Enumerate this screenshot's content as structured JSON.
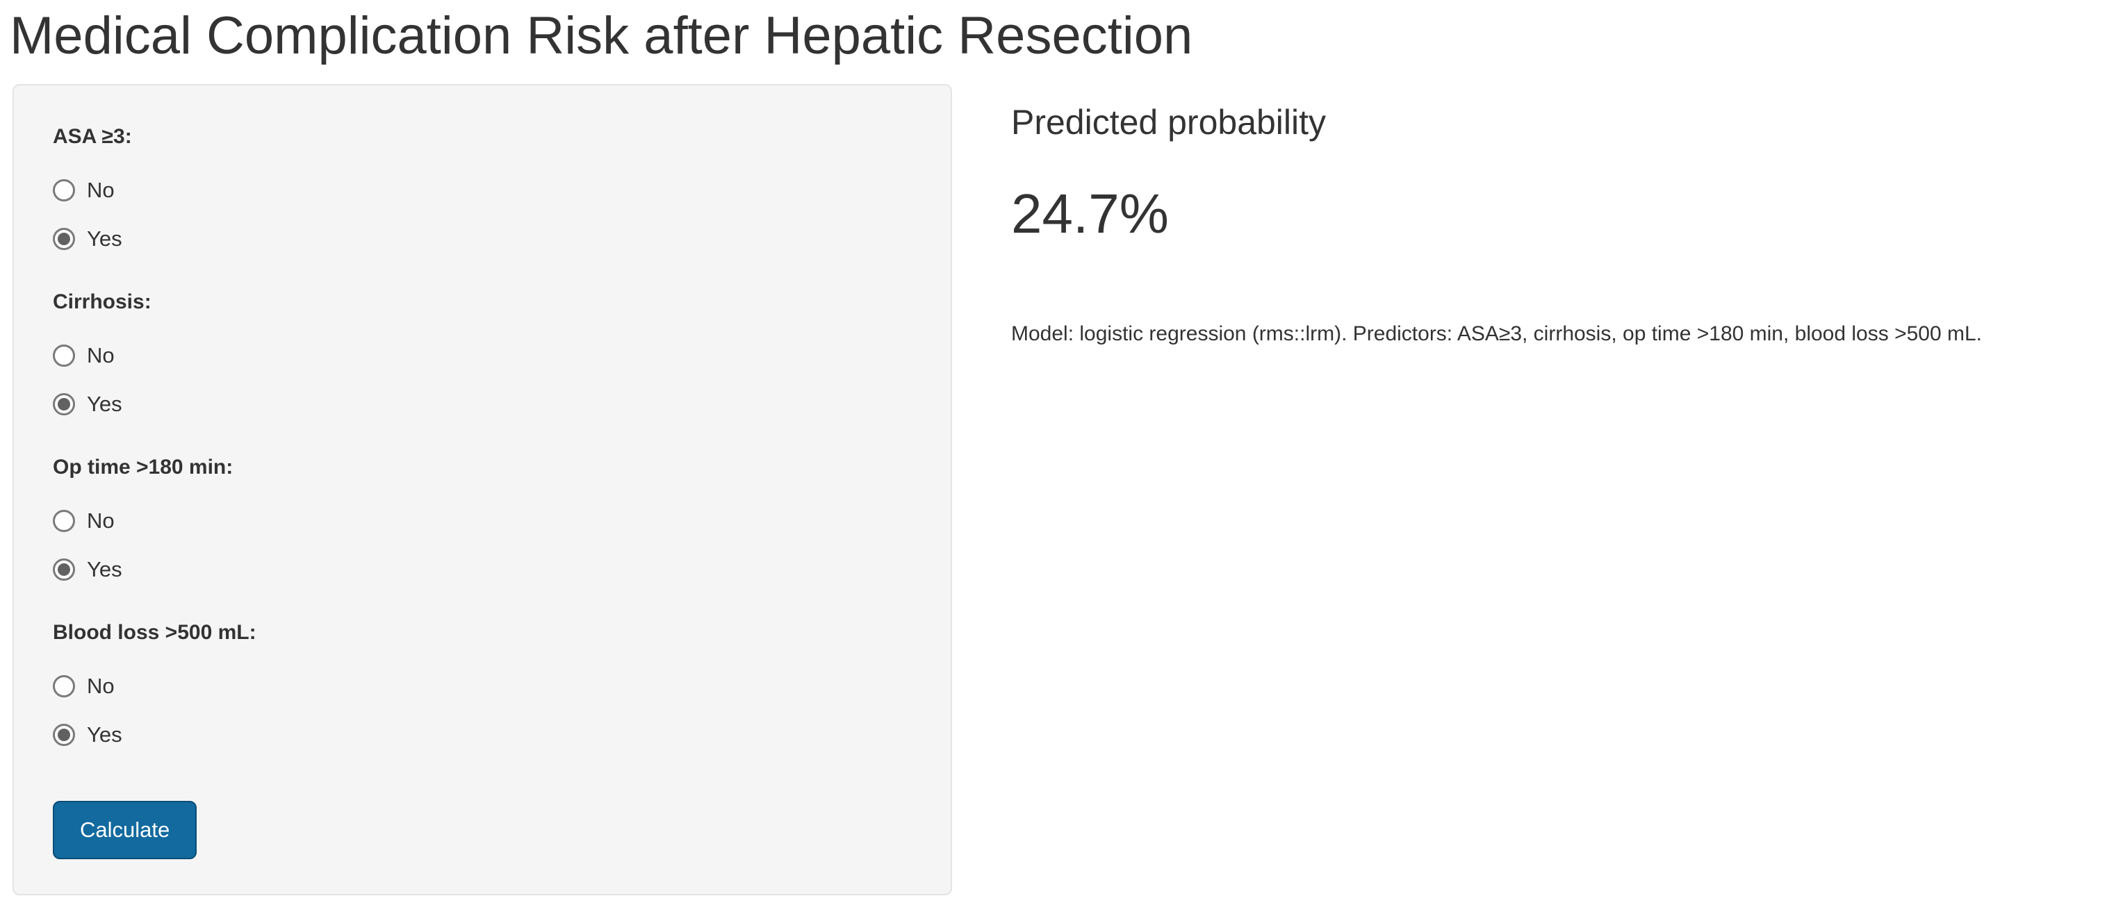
{
  "app": {
    "title": "Medical Complication Risk after Hepatic Resection"
  },
  "sidebar": {
    "groups": [
      {
        "label": "ASA ≥3:",
        "options": [
          {
            "label": "No",
            "selected": false
          },
          {
            "label": "Yes",
            "selected": true
          }
        ]
      },
      {
        "label": "Cirrhosis:",
        "options": [
          {
            "label": "No",
            "selected": false
          },
          {
            "label": "Yes",
            "selected": true
          }
        ]
      },
      {
        "label": "Op time >180 min:",
        "options": [
          {
            "label": "No",
            "selected": false
          },
          {
            "label": "Yes",
            "selected": true
          }
        ]
      },
      {
        "label": "Blood loss >500 mL:",
        "options": [
          {
            "label": "No",
            "selected": false
          },
          {
            "label": "Yes",
            "selected": true
          }
        ]
      }
    ],
    "calculate_label": "Calculate"
  },
  "main": {
    "heading": "Predicted probability",
    "probability": "24.7%",
    "model_note": "Model: logistic regression (rms::lrm). Predictors: ASA≥3, cirrhosis, op time >180 min, blood loss >500 mL."
  },
  "colors": {
    "accent": "#126a9e",
    "accent_border": "#0b4d77",
    "sidebar_bg": "#f5f5f5",
    "sidebar_border": "#e4e4e4",
    "text": "#333333",
    "radio_border": "#7a7a7a",
    "radio_selected_dot": "#616161"
  }
}
